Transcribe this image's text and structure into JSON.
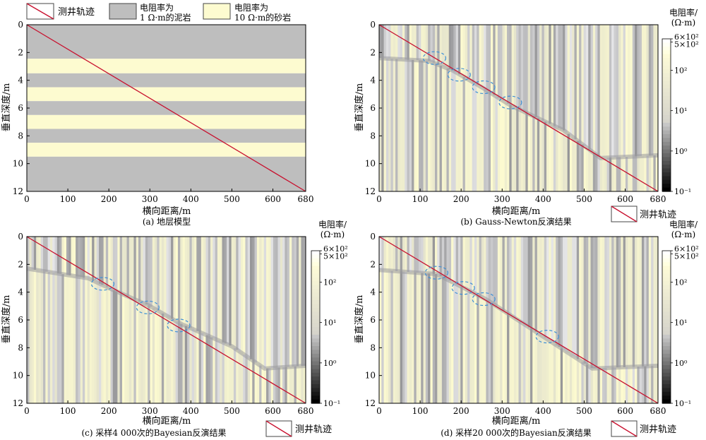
{
  "legend_top": {
    "well": "测井轨迹",
    "mud_line1": "电阻率为",
    "mud_line2": "1 Ω·m的泥岩",
    "sand_line1": "电阻率为",
    "sand_line2": "10 Ω·m的砂岩"
  },
  "well_legend": "测井轨迹",
  "colors": {
    "mud": "#bebebe",
    "sand": "#fdfbd0",
    "well": "#c8102e",
    "ellipse": "#3b8fd6"
  },
  "colorbar": {
    "title_line1": "电阻率/",
    "title_line2": "(Ω·m)",
    "tick_labels": [
      "6×10²",
      "5×10²",
      "10²",
      "10¹",
      "10⁰",
      "10⁻¹"
    ],
    "tick_values": [
      600,
      500,
      100,
      10,
      1,
      0.1
    ],
    "scale": "log"
  },
  "chart_data": [
    {
      "type": "heatmap",
      "subtitle": "(a) 地层模型",
      "xlabel": "横向距离/m",
      "ylabel": "垂直深度/m",
      "xlim": [
        0,
        680
      ],
      "ylim": [
        0,
        12
      ],
      "xticks": [
        0,
        100,
        200,
        300,
        400,
        500,
        600,
        680
      ],
      "yticks": [
        0,
        2,
        4,
        6,
        8,
        10,
        12
      ],
      "well_trajectory": [
        [
          0,
          0
        ],
        [
          680,
          12
        ]
      ],
      "layers": [
        {
          "top": 0,
          "bottom": 2.45,
          "resistivity": 1
        },
        {
          "top": 2.45,
          "bottom": 3.5,
          "resistivity": 10
        },
        {
          "top": 3.5,
          "bottom": 4.5,
          "resistivity": 1
        },
        {
          "top": 4.5,
          "bottom": 5.5,
          "resistivity": 10
        },
        {
          "top": 5.5,
          "bottom": 6.5,
          "resistivity": 1
        },
        {
          "top": 6.5,
          "bottom": 7.5,
          "resistivity": 10
        },
        {
          "top": 7.5,
          "bottom": 8.5,
          "resistivity": 1
        },
        {
          "top": 8.5,
          "bottom": 9.5,
          "resistivity": 10
        },
        {
          "top": 9.5,
          "bottom": 12,
          "resistivity": 1
        }
      ]
    },
    {
      "type": "heatmap",
      "subtitle": "(b) Gauss-Newton反演结果",
      "xlabel": "横向距离/m",
      "ylabel": "垂直深度/m",
      "xlim": [
        0,
        680
      ],
      "ylim": [
        0,
        12
      ],
      "xticks": [
        0,
        100,
        200,
        300,
        400,
        500,
        600,
        680
      ],
      "yticks": [
        0,
        2,
        4,
        6,
        8,
        10,
        12
      ],
      "well_trajectory": [
        [
          0,
          0
        ],
        [
          680,
          12
        ]
      ],
      "boundary": [
        [
          0,
          2.4
        ],
        [
          120,
          2.6
        ],
        [
          180,
          3.3
        ],
        [
          250,
          4.5
        ],
        [
          320,
          5.8
        ],
        [
          450,
          7.6
        ],
        [
          540,
          9.6
        ],
        [
          680,
          9.4
        ]
      ],
      "highlight_ellipses": [
        {
          "x": 135,
          "y": 2.4
        },
        {
          "x": 195,
          "y": 3.6
        },
        {
          "x": 255,
          "y": 4.5
        },
        {
          "x": 320,
          "y": 5.6
        }
      ]
    },
    {
      "type": "heatmap",
      "subtitle": "(c) 采样4 000次的Bayesian反演结果",
      "xlabel": "横向距离/m",
      "ylabel": "垂直深度/m",
      "xlim": [
        0,
        680
      ],
      "ylim": [
        0,
        12
      ],
      "xticks": [
        0,
        100,
        200,
        300,
        400,
        500,
        600,
        680
      ],
      "yticks": [
        0,
        2,
        4,
        6,
        8,
        10,
        12
      ],
      "well_trajectory": [
        [
          0,
          0
        ],
        [
          680,
          12
        ]
      ],
      "boundary": [
        [
          0,
          2.3
        ],
        [
          150,
          3.0
        ],
        [
          200,
          3.7
        ],
        [
          300,
          5.0
        ],
        [
          370,
          6.2
        ],
        [
          500,
          7.9
        ],
        [
          580,
          9.5
        ],
        [
          680,
          9.3
        ]
      ],
      "highlight_ellipses": [
        {
          "x": 185,
          "y": 3.4
        },
        {
          "x": 295,
          "y": 5.1
        },
        {
          "x": 370,
          "y": 6.4
        }
      ]
    },
    {
      "type": "heatmap",
      "subtitle": "(d) 采样20 000次的Bayesian反演结果",
      "xlabel": "横向距离/m",
      "ylabel": "垂直深度/m",
      "xlim": [
        0,
        680
      ],
      "ylim": [
        0,
        12
      ],
      "xticks": [
        0,
        100,
        200,
        300,
        400,
        500,
        600,
        680
      ],
      "yticks": [
        0,
        2,
        4,
        6,
        8,
        10,
        12
      ],
      "well_trajectory": [
        [
          0,
          0
        ],
        [
          680,
          12
        ]
      ],
      "boundary": [
        [
          0,
          2.4
        ],
        [
          140,
          2.7
        ],
        [
          200,
          3.6
        ],
        [
          260,
          4.5
        ],
        [
          400,
          7.2
        ],
        [
          520,
          9.5
        ],
        [
          680,
          9.3
        ]
      ],
      "highlight_ellipses": [
        {
          "x": 140,
          "y": 2.6
        },
        {
          "x": 205,
          "y": 3.7
        },
        {
          "x": 255,
          "y": 4.5
        },
        {
          "x": 410,
          "y": 7.2
        }
      ]
    }
  ]
}
